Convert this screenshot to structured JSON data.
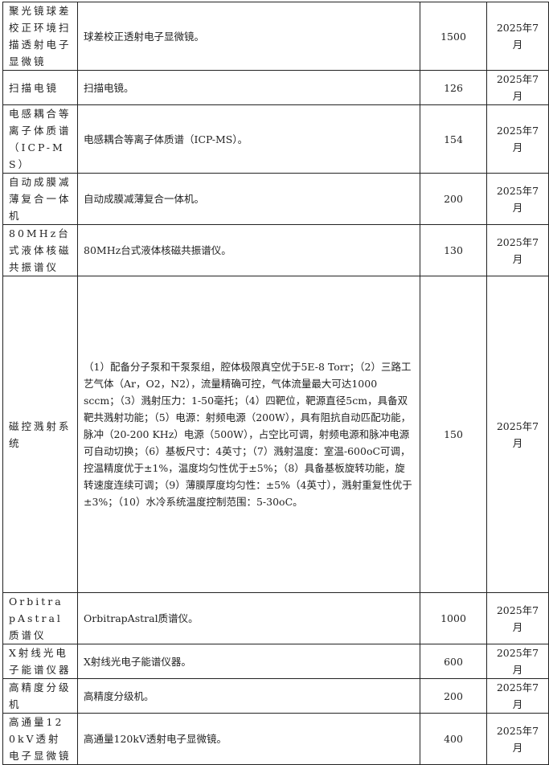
{
  "rows": [
    {
      "name": "聚光镜球差校正环境扫描透射电子显微镜",
      "desc": "球差校正透射电子显微镜。",
      "qty": "1500",
      "date": "2025年7月"
    },
    {
      "name": "扫描电镜",
      "desc": "扫描电镜。",
      "qty": "126",
      "date": "2025年7月"
    },
    {
      "name": "电感耦合等离子体质谱（ICP-MS）",
      "desc": "电感耦合等离子体质谱（ICP-MS）。",
      "qty": "154",
      "date": "2025年7月"
    },
    {
      "name": "自动成膜减薄复合一体机",
      "desc": "自动成膜减薄复合一体机。",
      "qty": "200",
      "date": "2025年7月"
    },
    {
      "name": "80MHz台式液体核磁共振谱仪",
      "desc": "80MHz台式液体核磁共振谱仪。",
      "qty": "130",
      "date": "2025年7月"
    },
    {
      "name": "磁控溅射系统",
      "desc": "（1）配备分子泵和干泵泵组，腔体极限真空优于5E-8 Torr；（2）三路工艺气体（Ar，O2，N2），流量精确可控，气体流量最大可达1000 sccm；（3）溅射压力：1-50毫托；（4）四靶位，靶源直径5cm，具备双靶共溅射功能；（5）电源：射频电源（200W），具有阻抗自动匹配功能，脉冲（20-200 KHz）电源（500W），占空比可调，射频电源和脉冲电源可自动切换；（6）基板尺寸：4英寸；（7）溅射温度：室温-600oC可调，控温精度优于±1%，温度均匀性优于±5%；（8）具备基板旋转功能，旋转速度连续可调；（9）薄膜厚度均匀性：±5%（4英寸），溅射重复性优于±3%；（10）水冷系统温度控制范围：5-30oC。",
      "qty": "150",
      "date": "2025年7月"
    },
    {
      "name": "OrbitrapAstral质谱仪",
      "desc": "OrbitrapAstral质谱仪。",
      "qty": "1000",
      "date": "2025年7月"
    },
    {
      "name": "X射线光电子能谱仪器",
      "desc": "X射线光电子能谱仪器。",
      "qty": "600",
      "date": "2025年7月"
    },
    {
      "name": "高精度分级机",
      "desc": "高精度分级机。",
      "qty": "200",
      "date": "2025年7月"
    },
    {
      "name": "高通量120kV透射电子显微镜",
      "desc": "高通量120kV透射电子显微镜。",
      "qty": "400",
      "date": "2025年7月"
    }
  ]
}
